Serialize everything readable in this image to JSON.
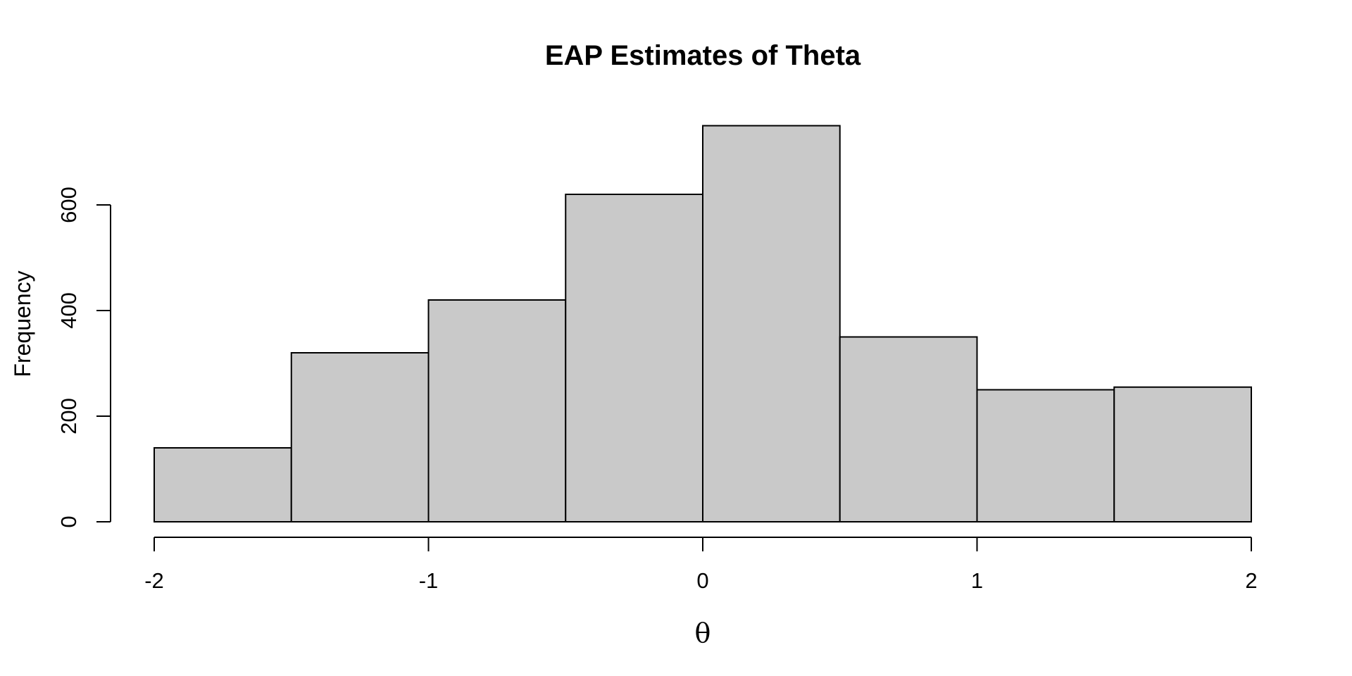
{
  "chart_data": {
    "type": "bar",
    "subtype": "histogram",
    "title": "EAP Estimates of Theta",
    "xlabel": "θ",
    "ylabel": "Frequency",
    "breaks": [
      -2,
      -1.5,
      -1,
      -0.5,
      0,
      0.5,
      1,
      1.5,
      2
    ],
    "counts": [
      140,
      320,
      420,
      620,
      750,
      350,
      250,
      255
    ],
    "x_ticks": [
      "-2",
      "-1",
      "0",
      "1",
      "2"
    ],
    "x_tick_values": [
      -2,
      -1,
      0,
      1,
      2
    ],
    "y_ticks": [
      "0",
      "200",
      "400",
      "600"
    ],
    "y_tick_values": [
      0,
      200,
      400,
      600
    ],
    "xlim": [
      -2,
      2
    ],
    "ylim": [
      0,
      750
    ],
    "grid": "off",
    "legend": "none",
    "colors": {
      "bar_fill": "#c9c9c9",
      "bar_border": "#000000",
      "axis": "#000000",
      "background": "#ffffff"
    }
  }
}
